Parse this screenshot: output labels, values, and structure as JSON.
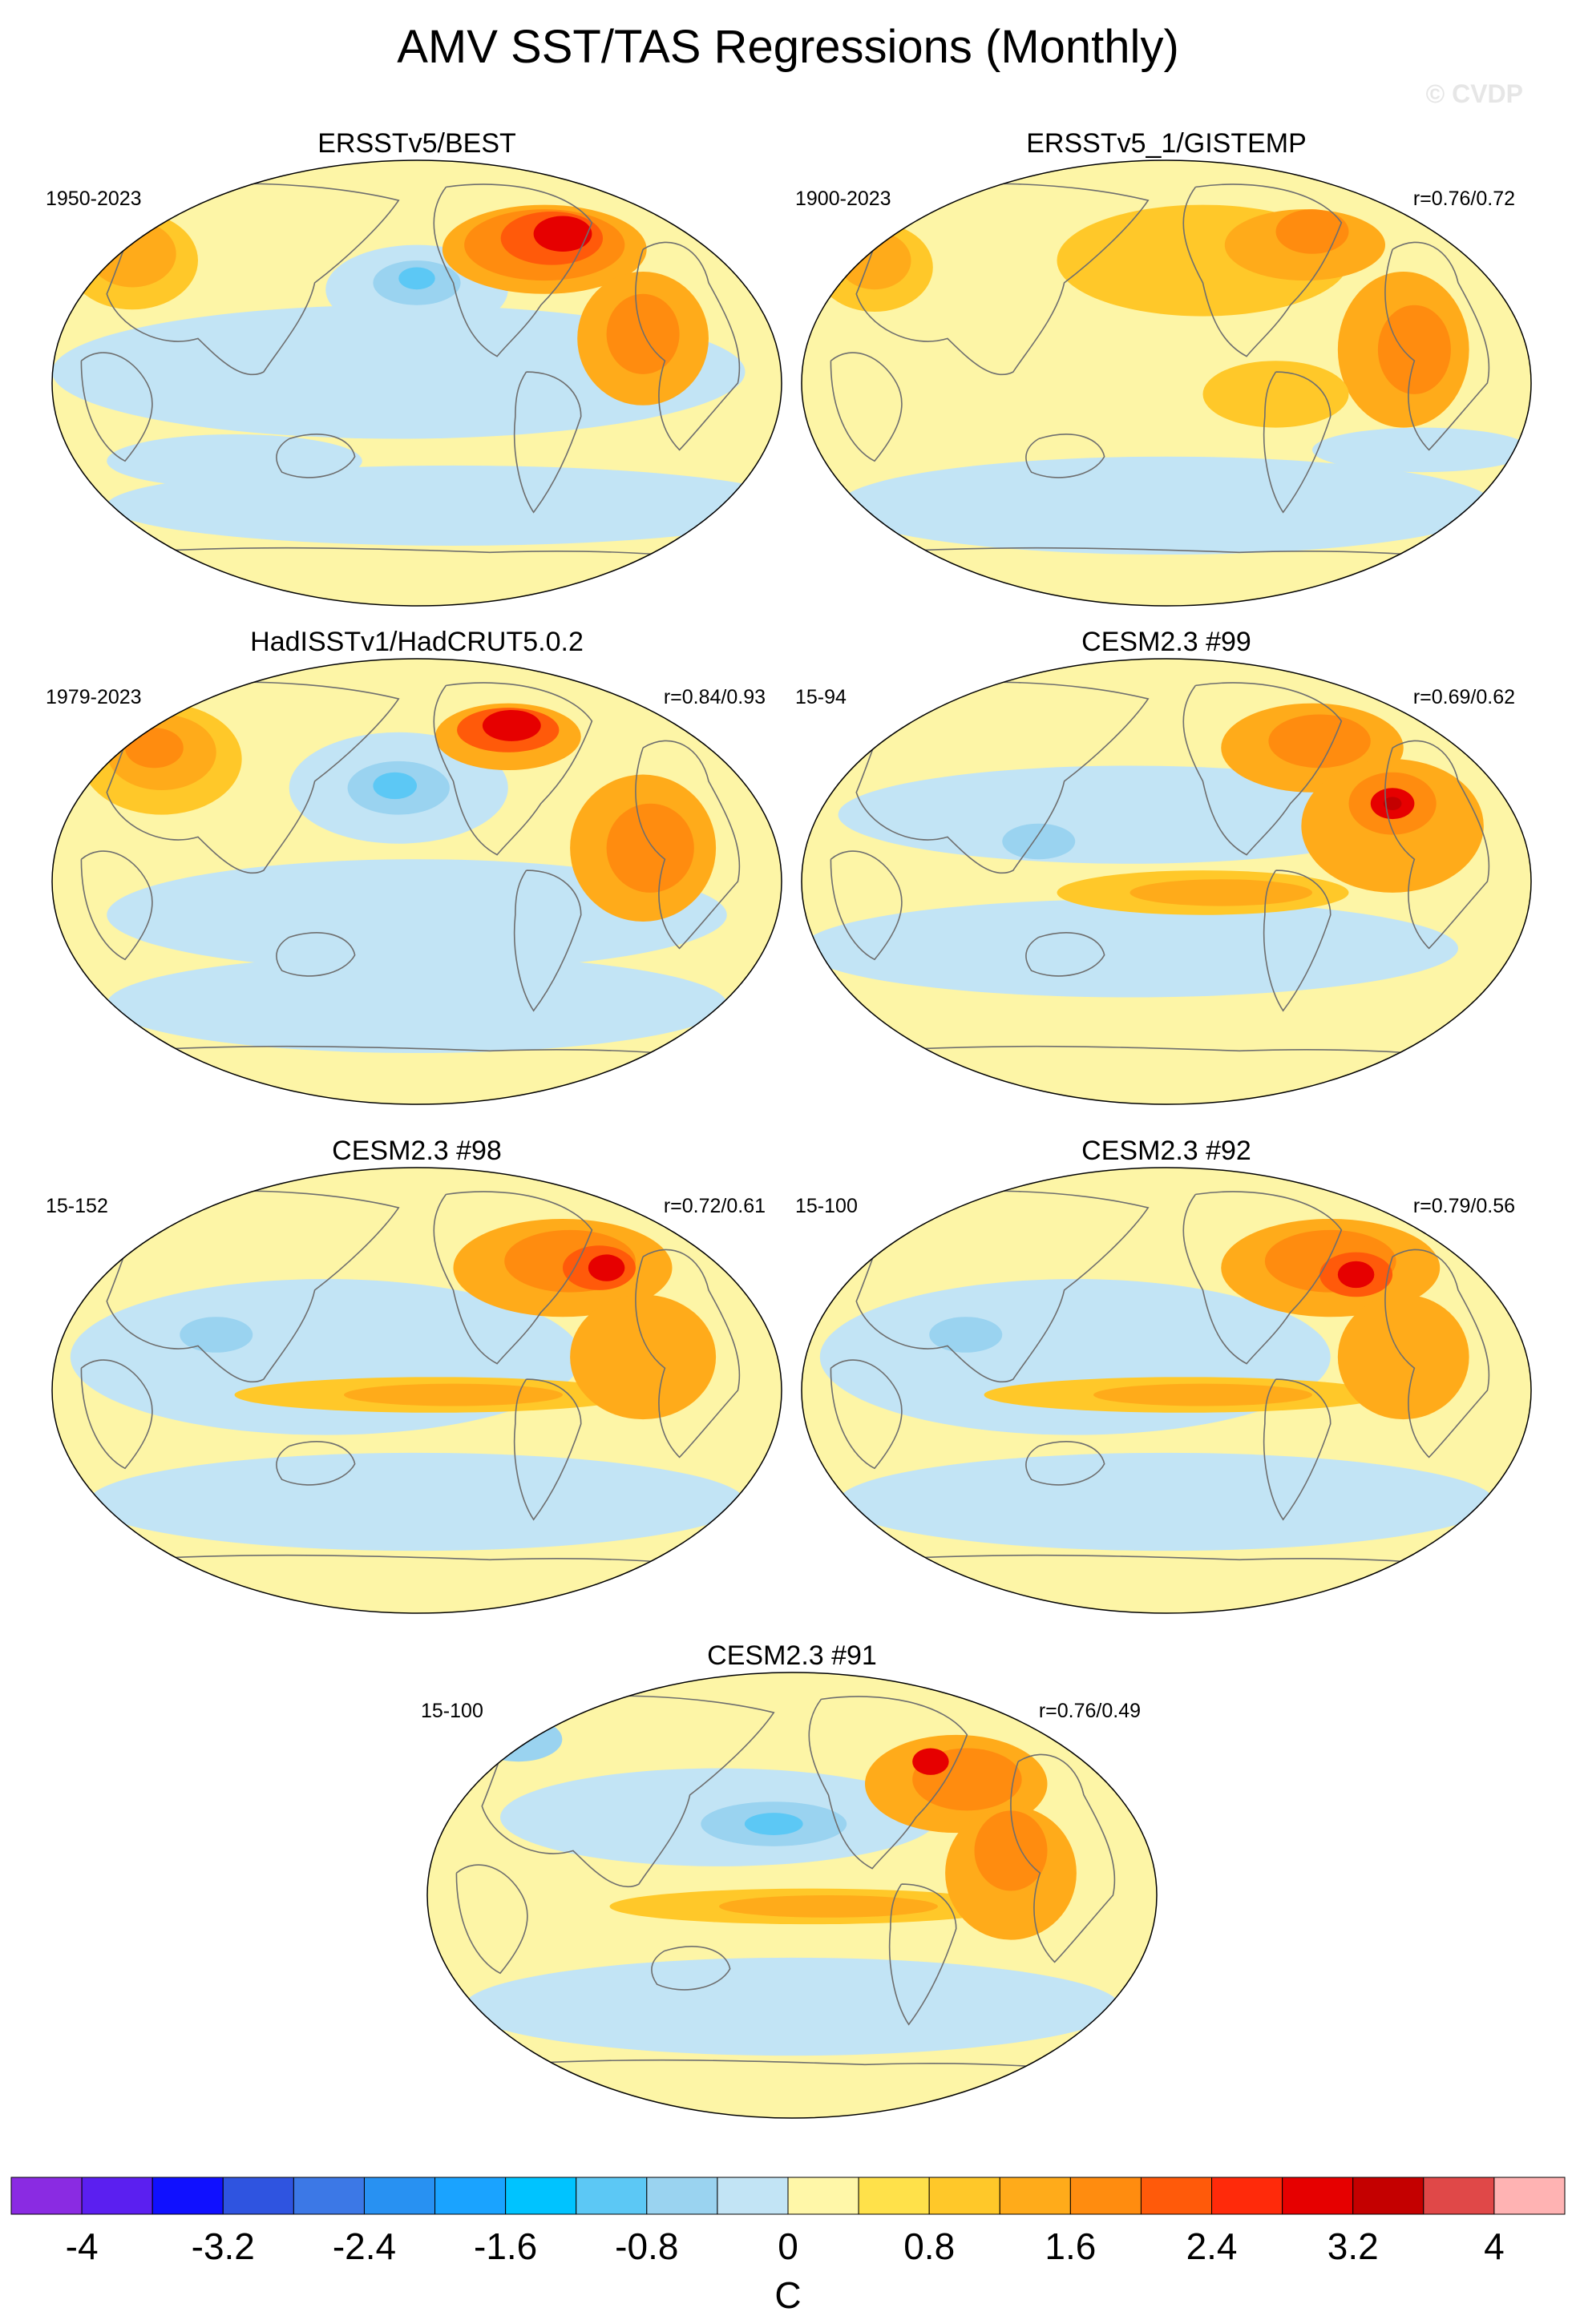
{
  "title": "AMV SST/TAS Regressions (Monthly)",
  "watermark": "© CVDP",
  "colors": {
    "ocean_land_base": "#fdf5a6",
    "coast": "#6e6e6e",
    "map_border": "#000000"
  },
  "panels": [
    {
      "title": "ERSSTv5/BEST",
      "period": "1950-2023",
      "correlation": ""
    },
    {
      "title": "ERSSTv5_1/GISTEMP",
      "period": "1900-2023",
      "correlation": "r=0.76/0.72"
    },
    {
      "title": "HadISSTv1/HadCRUT5.0.2",
      "period": "1979-2023",
      "correlation": "r=0.84/0.93"
    },
    {
      "title": "CESM2.3 #99",
      "period": "15-94",
      "correlation": "r=0.69/0.62"
    },
    {
      "title": "CESM2.3 #98",
      "period": "15-152",
      "correlation": "r=0.72/0.61"
    },
    {
      "title": "CESM2.3 #92",
      "period": "15-100",
      "correlation": "r=0.79/0.56"
    },
    {
      "title": "CESM2.3 #91",
      "period": "15-100",
      "correlation": "r=0.76/0.49"
    }
  ],
  "colorbar": {
    "unit": "C",
    "ticks": [
      "-4",
      "-3.2",
      "-2.4",
      "-1.6",
      "-0.8",
      "0",
      "0.8",
      "1.6",
      "2.4",
      "3.2",
      "4"
    ],
    "colors": [
      "#8a2be2",
      "#5b1ff0",
      "#1010ff",
      "#2f54e0",
      "#3c78e6",
      "#2891f2",
      "#1aa3ff",
      "#00c3ff",
      "#5cc8f5",
      "#9ad3f0",
      "#c2e4f5",
      "#fff7a8",
      "#ffe14a",
      "#ffc829",
      "#ffab1a",
      "#ff8c0f",
      "#ff5a0a",
      "#ff2a0a",
      "#e60000",
      "#c40000",
      "#e04848",
      "#ffb3b3"
    ]
  }
}
